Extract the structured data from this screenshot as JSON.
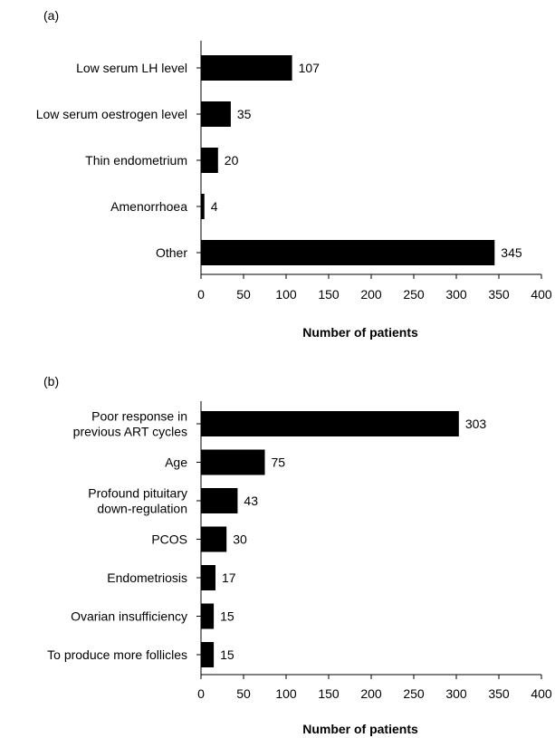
{
  "chart_data": [
    {
      "type": "bar",
      "orientation": "horizontal",
      "panel_label": "(a)",
      "categories": [
        [
          "Low serum LH level"
        ],
        [
          "Low serum oestrogen level"
        ],
        [
          "Thin endometrium"
        ],
        [
          "Amenorrhoea"
        ],
        [
          "Other"
        ]
      ],
      "values": [
        107,
        35,
        20,
        4,
        345
      ],
      "xlabel": "Number of patients",
      "xlim": [
        0,
        400
      ],
      "xticks": [
        0,
        50,
        100,
        150,
        200,
        250,
        300,
        350,
        400
      ],
      "bar_color": "#000000",
      "grid": false
    },
    {
      "type": "bar",
      "orientation": "horizontal",
      "panel_label": "(b)",
      "categories": [
        [
          "Poor response in",
          "previous ART cycles"
        ],
        [
          "Age"
        ],
        [
          "Profound pituitary",
          "down-regulation"
        ],
        [
          "PCOS"
        ],
        [
          "Endometriosis"
        ],
        [
          "Ovarian insufficiency"
        ],
        [
          "To produce more follicles"
        ]
      ],
      "values": [
        303,
        75,
        43,
        30,
        17,
        15,
        15
      ],
      "xlabel": "Number of patients",
      "xlim": [
        0,
        400
      ],
      "xticks": [
        0,
        50,
        100,
        150,
        200,
        250,
        300,
        350,
        400
      ],
      "bar_color": "#000000",
      "grid": false
    }
  ]
}
